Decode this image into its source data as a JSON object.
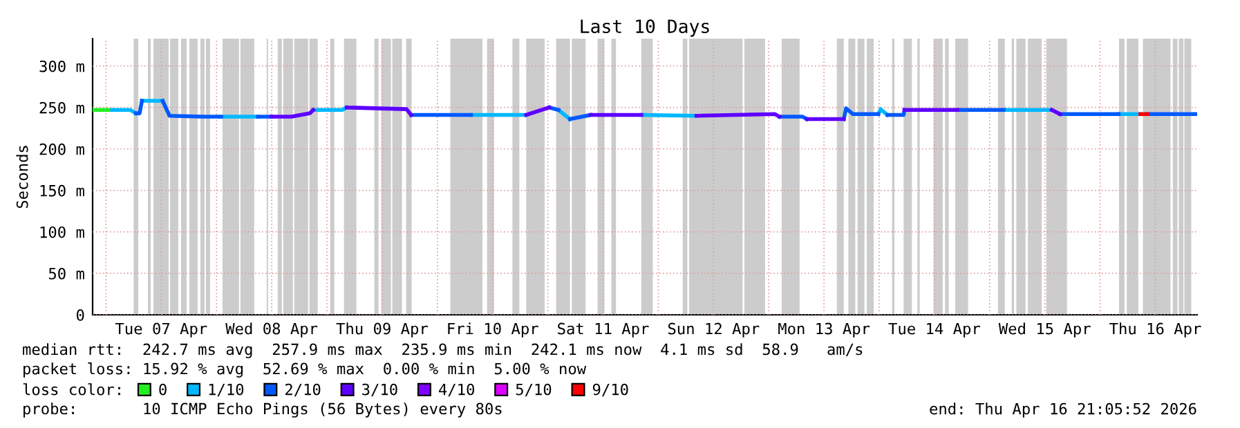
{
  "chart_data": {
    "type": "line",
    "title": "Last 10 Days",
    "ylabel": "Seconds",
    "xlim": [
      "2026-04-06T21:05",
      "2026-04-16T21:05"
    ],
    "xticks": [
      {
        "value": "2026-04-07T00:00",
        "label": null
      },
      {
        "value": "2026-04-07T12:00",
        "label": "Tue 07 Apr"
      },
      {
        "value": "2026-04-08T00:00",
        "label": null
      },
      {
        "value": "2026-04-08T12:00",
        "label": "Wed 08 Apr"
      },
      {
        "value": "2026-04-09T00:00",
        "label": null
      },
      {
        "value": "2026-04-09T12:00",
        "label": "Thu 09 Apr"
      },
      {
        "value": "2026-04-10T00:00",
        "label": null
      },
      {
        "value": "2026-04-10T12:00",
        "label": "Fri 10 Apr"
      },
      {
        "value": "2026-04-11T00:00",
        "label": null
      },
      {
        "value": "2026-04-11T12:00",
        "label": "Sat 11 Apr"
      },
      {
        "value": "2026-04-12T00:00",
        "label": null
      },
      {
        "value": "2026-04-12T12:00",
        "label": "Sun 12 Apr"
      },
      {
        "value": "2026-04-13T00:00",
        "label": null
      },
      {
        "value": "2026-04-13T12:00",
        "label": "Mon 13 Apr"
      },
      {
        "value": "2026-04-14T00:00",
        "label": null
      },
      {
        "value": "2026-04-14T12:00",
        "label": "Tue 14 Apr"
      },
      {
        "value": "2026-04-15T00:00",
        "label": null
      },
      {
        "value": "2026-04-15T12:00",
        "label": "Wed 15 Apr"
      },
      {
        "value": "2026-04-16T00:00",
        "label": null
      },
      {
        "value": "2026-04-16T12:00",
        "label": "Thu 16 Apr"
      }
    ],
    "ylim": [
      0,
      333
    ],
    "yticks": [
      0,
      {
        "value": 50,
        "label": "50 m"
      },
      {
        "value": 100,
        "label": "100 m"
      },
      {
        "value": 150,
        "label": "150 m"
      },
      {
        "value": 200,
        "label": "200 m"
      },
      {
        "value": 250,
        "label": "250 m"
      },
      {
        "value": 300,
        "label": "300 m"
      }
    ],
    "grid": true,
    "legend": "bottom",
    "legend_title": "loss color:",
    "line_style": "solid",
    "marker": "none",
    "series": [
      {
        "name": "0",
        "color": "#22ee22",
        "x": [
          "2026-04-06T21:06",
          "2026-04-07T01:18"
        ],
        "values": [
          247,
          247
        ]
      },
      {
        "name": "1/10",
        "color": "#00b8ff",
        "x": [
          "2026-04-07T01:18",
          "2026-04-07T05:18",
          "2026-04-07T06:30",
          null,
          "2026-04-07T07:48",
          "2026-04-07T12:18",
          null,
          "2026-04-08T01:00",
          "2026-04-08T09:00",
          null,
          "2026-04-08T21:00",
          "2026-04-09T03:18",
          "2026-04-09T04:18",
          null,
          "2026-04-10T07:18",
          "2026-04-10T19:18",
          null,
          "2026-04-11T02:18",
          "2026-04-11T04:48",
          null,
          "2026-04-11T20:18",
          "2026-04-12T08:18",
          null,
          "2026-04-13T23:48",
          "2026-04-14T00:18",
          "2026-04-14T01:48",
          null,
          "2026-04-15T03:00",
          "2026-04-15T13:30",
          null,
          "2026-04-16T04:00",
          "2026-04-16T08:45"
        ],
        "values": [
          247,
          247,
          243,
          null,
          258,
          258,
          null,
          239,
          239,
          null,
          247,
          247,
          250,
          null,
          241,
          241,
          null,
          247,
          236,
          null,
          241,
          240,
          null,
          242,
          248,
          241,
          null,
          247,
          247,
          null,
          242,
          242
        ]
      },
      {
        "name": "2/10",
        "color": "#0059ff",
        "x": [
          "2026-04-07T06:30",
          "2026-04-07T07:18",
          "2026-04-07T07:48",
          null,
          "2026-04-07T12:18",
          "2026-04-07T13:48",
          "2026-04-07T21:18",
          "2026-04-08T01:00",
          null,
          "2026-04-08T09:00",
          "2026-04-08T12:00",
          null,
          "2026-04-09T18:18",
          "2026-04-10T07:18",
          null,
          "2026-04-11T00:18",
          "2026-04-11T02:18",
          null,
          "2026-04-11T04:48",
          "2026-04-11T09:18",
          null,
          "2026-04-13T02:18",
          "2026-04-13T07:18",
          "2026-04-13T08:18",
          null,
          "2026-04-13T16:18",
          "2026-04-13T16:48",
          "2026-04-13T18:18",
          "2026-04-13T23:48",
          null,
          "2026-04-14T01:48",
          "2026-04-14T05:18",
          "2026-04-14T05:30",
          null,
          "2026-04-14T17:00",
          "2026-04-15T03:00",
          null,
          "2026-04-15T15:18",
          "2026-04-16T04:00",
          null,
          "2026-04-16T10:15",
          "2026-04-16T12:00",
          "2026-04-16T21:00"
        ],
        "values": [
          243,
          243,
          258,
          null,
          258,
          240,
          239,
          239,
          null,
          239,
          239,
          null,
          241,
          241,
          null,
          250,
          247,
          null,
          236,
          241,
          null,
          239,
          239,
          236,
          null,
          236,
          249,
          242,
          242,
          null,
          241,
          241,
          247,
          null,
          247,
          247,
          null,
          242,
          242,
          null,
          242,
          242,
          242
        ]
      },
      {
        "name": "3/10",
        "color": "#5e00ff",
        "x": [
          "2026-04-08T12:00",
          "2026-04-08T16:18",
          "2026-04-08T20:18",
          "2026-04-08T21:00",
          null,
          "2026-04-09T04:18",
          "2026-04-09T17:18",
          "2026-04-09T18:18",
          null,
          "2026-04-10T19:18",
          "2026-04-11T00:18",
          null,
          "2026-04-11T09:18",
          "2026-04-11T20:18",
          null,
          "2026-04-12T08:18",
          "2026-04-13T01:18",
          "2026-04-13T02:18",
          null,
          "2026-04-13T08:18",
          "2026-04-13T16:18",
          null,
          "2026-04-14T05:30",
          "2026-04-14T17:00",
          null,
          "2026-04-15T13:30",
          "2026-04-15T15:18"
        ],
        "values": [
          239,
          239,
          243,
          247,
          null,
          250,
          248,
          241,
          null,
          241,
          250,
          null,
          241,
          241,
          null,
          240,
          242,
          239,
          null,
          236,
          236,
          null,
          247,
          247,
          null,
          247,
          242
        ]
      },
      {
        "name": "4/10",
        "color": "#7e00ff"
      },
      {
        "name": "5/10",
        "color": "#dd00ff"
      },
      {
        "name": "9/10",
        "color": "#ff0000",
        "x": [
          "2026-04-16T08:45",
          "2026-04-16T10:15"
        ],
        "values": [
          242,
          242
        ]
      }
    ],
    "bands": [
      {
        "axis": "x",
        "from": "2026-04-07T06:00",
        "to": "2026-04-07T07:00",
        "color": "#cccccc"
      },
      {
        "axis": "x",
        "from": "2026-04-07T09:06",
        "to": "2026-04-07T09:42",
        "color": "#cccccc"
      },
      {
        "axis": "x",
        "from": "2026-04-07T10:18",
        "to": "2026-04-07T13:36",
        "color": "#cccccc"
      },
      {
        "axis": "x",
        "from": "2026-04-07T13:54",
        "to": "2026-04-07T15:42",
        "color": "#cccccc"
      },
      {
        "axis": "x",
        "from": "2026-04-07T16:18",
        "to": "2026-04-07T17:30",
        "color": "#cccccc"
      },
      {
        "axis": "x",
        "from": "2026-04-07T18:06",
        "to": "2026-04-07T19:54",
        "color": "#cccccc"
      },
      {
        "axis": "x",
        "from": "2026-04-07T20:30",
        "to": "2026-04-07T21:24",
        "color": "#cccccc"
      },
      {
        "axis": "x",
        "from": "2026-04-07T21:42",
        "to": "2026-04-07T22:36",
        "color": "#cccccc"
      },
      {
        "axis": "x",
        "from": "2026-04-08T01:18",
        "to": "2026-04-08T04:54",
        "color": "#cccccc"
      },
      {
        "axis": "x",
        "from": "2026-04-08T05:12",
        "to": "2026-04-08T08:12",
        "color": "#cccccc"
      },
      {
        "axis": "x",
        "from": "2026-04-08T10:54",
        "to": "2026-04-08T11:12",
        "color": "#cccccc"
      },
      {
        "axis": "x",
        "from": "2026-04-08T13:18",
        "to": "2026-04-08T14:12",
        "color": "#cccccc"
      },
      {
        "axis": "x",
        "from": "2026-04-08T14:30",
        "to": "2026-04-08T16:36",
        "color": "#cccccc"
      },
      {
        "axis": "x",
        "from": "2026-04-08T16:54",
        "to": "2026-04-08T19:54",
        "color": "#cccccc"
      },
      {
        "axis": "x",
        "from": "2026-04-08T20:12",
        "to": "2026-04-08T22:00",
        "color": "#cccccc"
      },
      {
        "axis": "x",
        "from": "2026-04-09T00:42",
        "to": "2026-04-09T01:36",
        "color": "#cccccc"
      },
      {
        "axis": "x",
        "from": "2026-04-09T03:42",
        "to": "2026-04-09T06:24",
        "color": "#cccccc"
      },
      {
        "axis": "x",
        "from": "2026-04-09T10:18",
        "to": "2026-04-09T11:12",
        "color": "#cccccc"
      },
      {
        "axis": "x",
        "from": "2026-04-09T11:48",
        "to": "2026-04-09T13:54",
        "color": "#cccccc"
      },
      {
        "axis": "x",
        "from": "2026-04-09T14:12",
        "to": "2026-04-09T16:18",
        "color": "#cccccc"
      },
      {
        "axis": "x",
        "from": "2026-04-09T17:12",
        "to": "2026-04-09T18:24",
        "color": "#cccccc"
      },
      {
        "axis": "x",
        "from": "2026-04-10T02:48",
        "to": "2026-04-10T09:48",
        "color": "#cccccc"
      },
      {
        "axis": "x",
        "from": "2026-04-10T10:48",
        "to": "2026-04-10T12:18",
        "color": "#cccccc"
      },
      {
        "axis": "x",
        "from": "2026-04-10T16:18",
        "to": "2026-04-10T17:48",
        "color": "#cccccc"
      },
      {
        "axis": "x",
        "from": "2026-04-10T19:18",
        "to": "2026-04-10T23:18",
        "color": "#cccccc"
      },
      {
        "axis": "x",
        "from": "2026-04-11T01:48",
        "to": "2026-04-11T04:48",
        "color": "#cccccc"
      },
      {
        "axis": "x",
        "from": "2026-04-11T05:12",
        "to": "2026-04-11T08:12",
        "color": "#cccccc"
      },
      {
        "axis": "x",
        "from": "2026-04-11T10:48",
        "to": "2026-04-11T12:18",
        "color": "#cccccc"
      },
      {
        "axis": "x",
        "from": "2026-04-11T13:48",
        "to": "2026-04-11T14:48",
        "color": "#cccccc"
      },
      {
        "axis": "x",
        "from": "2026-04-11T20:18",
        "to": "2026-04-11T22:48",
        "color": "#cccccc"
      },
      {
        "axis": "x",
        "from": "2026-04-12T05:18",
        "to": "2026-04-12T06:18",
        "color": "#cccccc"
      },
      {
        "axis": "x",
        "from": "2026-04-12T06:42",
        "to": "2026-04-12T18:18",
        "color": "#cccccc"
      },
      {
        "axis": "x",
        "from": "2026-04-12T18:42",
        "to": "2026-04-12T23:12",
        "color": "#cccccc"
      },
      {
        "axis": "x",
        "from": "2026-04-13T02:48",
        "to": "2026-04-13T06:42",
        "color": "#cccccc"
      },
      {
        "axis": "x",
        "from": "2026-04-13T14:48",
        "to": "2026-04-13T16:18",
        "color": "#cccccc"
      },
      {
        "axis": "x",
        "from": "2026-04-13T17:18",
        "to": "2026-04-13T18:48",
        "color": "#cccccc"
      },
      {
        "axis": "x",
        "from": "2026-04-13T19:18",
        "to": "2026-04-13T20:48",
        "color": "#cccccc"
      },
      {
        "axis": "x",
        "from": "2026-04-13T21:18",
        "to": "2026-04-13T22:48",
        "color": "#cccccc"
      },
      {
        "axis": "x",
        "from": "2026-04-14T02:48",
        "to": "2026-04-14T03:18",
        "color": "#cccccc"
      },
      {
        "axis": "x",
        "from": "2026-04-14T05:18",
        "to": "2026-04-14T07:06",
        "color": "#cccccc"
      },
      {
        "axis": "x",
        "from": "2026-04-14T08:18",
        "to": "2026-04-14T08:48",
        "color": "#cccccc"
      },
      {
        "axis": "x",
        "from": "2026-04-14T11:48",
        "to": "2026-04-14T13:48",
        "color": "#cccccc"
      },
      {
        "axis": "x",
        "from": "2026-04-14T14:18",
        "to": "2026-04-14T15:06",
        "color": "#cccccc"
      },
      {
        "axis": "x",
        "from": "2026-04-14T16:30",
        "to": "2026-04-14T19:18",
        "color": "#cccccc"
      },
      {
        "axis": "x",
        "from": "2026-04-15T01:48",
        "to": "2026-04-15T03:18",
        "color": "#cccccc"
      },
      {
        "axis": "x",
        "from": "2026-04-15T04:48",
        "to": "2026-04-15T05:18",
        "color": "#cccccc"
      },
      {
        "axis": "x",
        "from": "2026-04-15T05:48",
        "to": "2026-04-15T07:48",
        "color": "#cccccc"
      },
      {
        "axis": "x",
        "from": "2026-04-15T08:18",
        "to": "2026-04-15T11:18",
        "color": "#cccccc"
      },
      {
        "axis": "x",
        "from": "2026-04-15T12:18",
        "to": "2026-04-15T16:48",
        "color": "#cccccc"
      },
      {
        "axis": "x",
        "from": "2026-04-16T04:06",
        "to": "2026-04-16T05:18",
        "color": "#cccccc"
      },
      {
        "axis": "x",
        "from": "2026-04-16T05:48",
        "to": "2026-04-16T08:18",
        "color": "#cccccc"
      },
      {
        "axis": "x",
        "from": "2026-04-16T09:18",
        "to": "2026-04-16T15:18",
        "color": "#cccccc"
      },
      {
        "axis": "x",
        "from": "2026-04-16T15:48",
        "to": "2026-04-16T16:48",
        "color": "#cccccc"
      },
      {
        "axis": "x",
        "from": "2026-04-16T17:06",
        "to": "2026-04-16T18:06",
        "color": "#cccccc"
      },
      {
        "axis": "x",
        "from": "2026-04-16T18:18",
        "to": "2026-04-16T19:48",
        "color": "#cccccc"
      }
    ],
    "annotations": [
      "median rtt:  242.7 ms avg  257.9 ms max  235.9 ms min  242.1 ms now  4.1 ms sd  58.9   am/s",
      "packet loss: 15.92 % avg  52.69 % max  0.00 % min  5.00 % now",
      "probe:       10 ICMP Echo Pings (56 Bytes) every 80s",
      "end: Thu Apr 16 21:05:52 2026"
    ]
  }
}
